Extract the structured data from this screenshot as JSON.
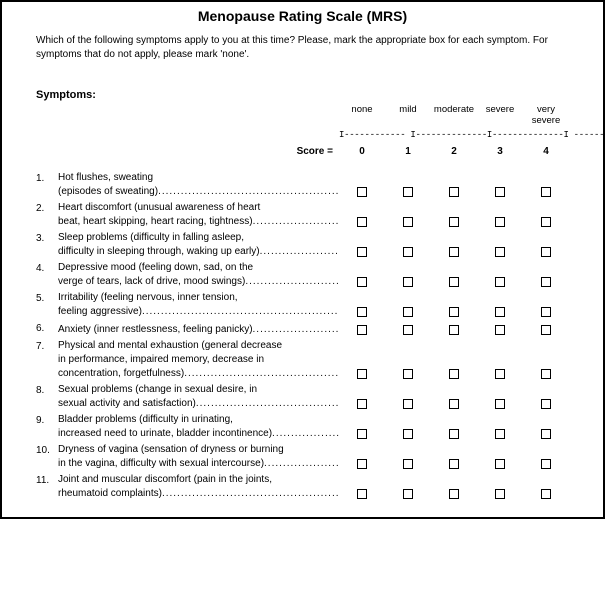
{
  "title": "Menopause Rating Scale (MRS)",
  "instructions": "Which of the following symptoms apply to you at this time? Please, mark the appropriate box for each symptom. For symptoms that do not apply, please mark 'none'.",
  "symptoms_label": "Symptoms:",
  "score_label": "Score   =",
  "columns": [
    {
      "label_top": "",
      "label": "none",
      "score": "0"
    },
    {
      "label_top": "",
      "label": "mild",
      "score": "1"
    },
    {
      "label_top": "",
      "label": "moderate",
      "score": "2"
    },
    {
      "label_top": "",
      "label": "severe",
      "score": "3"
    },
    {
      "label_top": "very",
      "label": "severe",
      "score": "4"
    }
  ],
  "scale_line": "I------------ I--------------I--------------I -------------I",
  "dots": "..................................................................................................................",
  "items": [
    {
      "num": "1.",
      "line1": "Hot flushes, sweating",
      "line2": "(episodes of sweating)"
    },
    {
      "num": "2.",
      "line1": "Heart discomfort (unusual awareness of heart",
      "line2": "beat, heart skipping, heart racing, tightness)"
    },
    {
      "num": "3.",
      "line1": "Sleep problems (difficulty in falling asleep,",
      "line2": "difficulty in sleeping through, waking up early)"
    },
    {
      "num": "4.",
      "line1": "Depressive mood (feeling down, sad, on the",
      "line2": "verge of tears, lack of drive, mood swings)"
    },
    {
      "num": "5.",
      "line1": "Irritability (feeling nervous, inner tension,",
      "line2": "feeling aggressive)"
    },
    {
      "num": "6.",
      "line1": "",
      "line2": "Anxiety (inner restlessness, feeling panicky)"
    },
    {
      "num": "7.",
      "line1": "Physical and mental exhaustion (general decrease",
      "line1b": "in performance, impaired memory, decrease in",
      "line2": "concentration, forgetfulness)"
    },
    {
      "num": "8.",
      "line1": "Sexual problems (change in sexual desire, in",
      "line2": "sexual activity and satisfaction)"
    },
    {
      "num": "9.",
      "line1": "Bladder problems (difficulty in urinating,",
      "line2": "increased need to urinate, bladder incontinence)"
    },
    {
      "num": "10.",
      "line1": "Dryness of vagina (sensation of dryness or burning",
      "line2": "in the vagina, difficulty with sexual intercourse)"
    },
    {
      "num": "11.",
      "line1": "Joint and muscular discomfort (pain in the joints,",
      "line2": "rheumatoid complaints)"
    }
  ]
}
